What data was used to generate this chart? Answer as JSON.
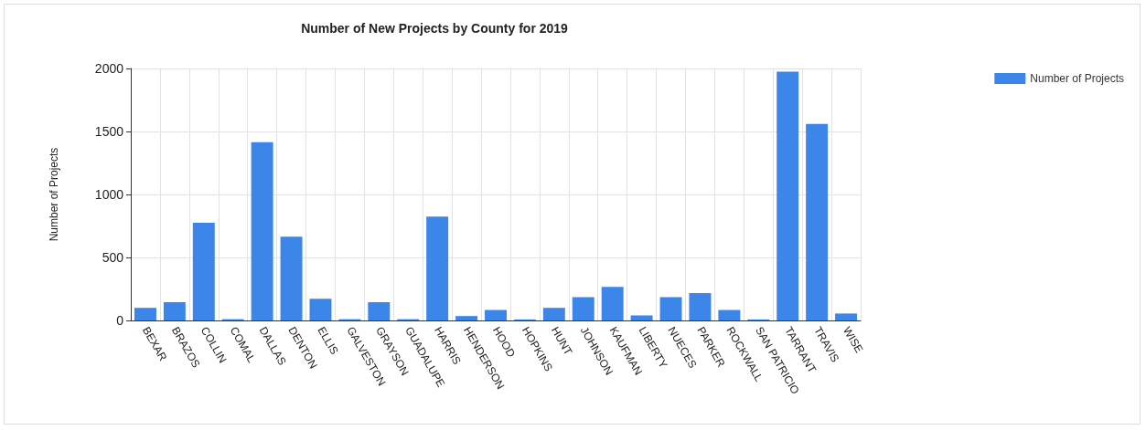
{
  "chart_data": {
    "type": "bar",
    "title": "Number of New Projects by County for 2019",
    "ylabel": "Number of Projects",
    "categories": [
      "BEXAR",
      "BRAZOS",
      "COLLIN",
      "COMAL",
      "DALLAS",
      "DENTON",
      "ELLIS",
      "GALVESTON",
      "GRAYSON",
      "GUADALUPE",
      "HARRIS",
      "HENDERSON",
      "HOOD",
      "HOPKINS",
      "HUNT",
      "JOHNSON",
      "KAUFMAN",
      "LIBERTY",
      "NUECES",
      "PARKER",
      "ROCKWALL",
      "SAN PATRICIO",
      "TARRANT",
      "TRAVIS",
      "WISE"
    ],
    "series": [
      {
        "name": "Number of Projects",
        "color": "#3b86e8",
        "values": [
          100,
          145,
          775,
          10,
          1415,
          665,
          172,
          10,
          145,
          10,
          825,
          35,
          83,
          8,
          100,
          185,
          267,
          40,
          185,
          217,
          83,
          8,
          1975,
          1560,
          55
        ]
      }
    ],
    "ylim": [
      0,
      2000
    ],
    "yticks": [
      0,
      500,
      1000,
      1500,
      2000
    ],
    "grid": true,
    "legend": "top right"
  }
}
